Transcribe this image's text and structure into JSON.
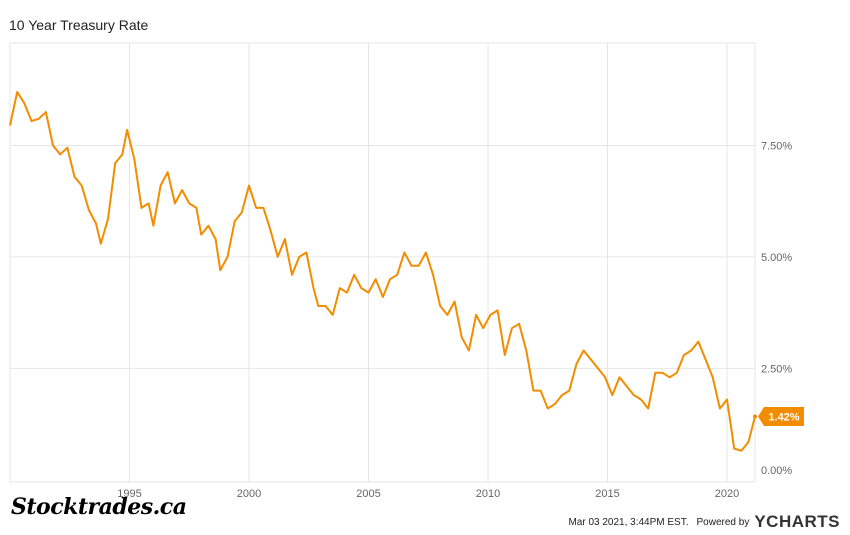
{
  "chart_data": {
    "type": "line",
    "title": "10 Year Treasury Rate",
    "series": [
      {
        "name": "",
        "color": "#f28c00",
        "x": [
          1990.0,
          1990.3,
          1990.6,
          1990.9,
          1991.2,
          1991.5,
          1991.8,
          1992.1,
          1992.4,
          1992.7,
          1993.0,
          1993.3,
          1993.6,
          1993.8,
          1994.1,
          1994.4,
          1994.7,
          1994.9,
          1995.2,
          1995.5,
          1995.8,
          1996.0,
          1996.3,
          1996.6,
          1996.9,
          1997.2,
          1997.5,
          1997.8,
          1998.0,
          1998.3,
          1998.6,
          1998.8,
          1999.1,
          1999.4,
          1999.7,
          2000.0,
          2000.3,
          2000.6,
          2000.9,
          2001.2,
          2001.5,
          2001.8,
          2002.1,
          2002.4,
          2002.7,
          2002.9,
          2003.2,
          2003.5,
          2003.8,
          2004.1,
          2004.4,
          2004.7,
          2005.0,
          2005.3,
          2005.6,
          2005.9,
          2006.2,
          2006.5,
          2006.8,
          2007.1,
          2007.4,
          2007.7,
          2008.0,
          2008.3,
          2008.6,
          2008.9,
          2009.2,
          2009.5,
          2009.8,
          2010.1,
          2010.4,
          2010.7,
          2011.0,
          2011.3,
          2011.6,
          2011.9,
          2012.2,
          2012.5,
          2012.8,
          2013.1,
          2013.4,
          2013.7,
          2014.0,
          2014.3,
          2014.6,
          2014.9,
          2015.2,
          2015.5,
          2015.8,
          2016.1,
          2016.4,
          2016.7,
          2017.0,
          2017.3,
          2017.6,
          2017.9,
          2018.2,
          2018.5,
          2018.8,
          2019.1,
          2019.4,
          2019.7,
          2020.0,
          2020.3,
          2020.6,
          2020.9,
          2021.17
        ],
        "y": [
          7.95,
          8.7,
          8.45,
          8.05,
          8.1,
          8.25,
          7.5,
          7.3,
          7.45,
          6.8,
          6.6,
          6.05,
          5.75,
          5.3,
          5.85,
          7.1,
          7.3,
          7.85,
          7.2,
          6.1,
          6.2,
          5.7,
          6.6,
          6.9,
          6.2,
          6.5,
          6.2,
          6.1,
          5.5,
          5.7,
          5.4,
          4.7,
          5.0,
          5.8,
          6.0,
          6.6,
          6.1,
          6.1,
          5.6,
          5.0,
          5.4,
          4.6,
          5.0,
          5.1,
          4.3,
          3.9,
          3.9,
          3.7,
          4.3,
          4.2,
          4.6,
          4.3,
          4.2,
          4.5,
          4.1,
          4.5,
          4.6,
          5.1,
          4.8,
          4.8,
          5.1,
          4.6,
          3.9,
          3.7,
          4.0,
          3.2,
          2.9,
          3.7,
          3.4,
          3.7,
          3.8,
          2.8,
          3.4,
          3.5,
          2.9,
          2.0,
          2.0,
          1.6,
          1.7,
          1.9,
          2.0,
          2.6,
          2.9,
          2.7,
          2.5,
          2.3,
          1.9,
          2.3,
          2.1,
          1.9,
          1.8,
          1.6,
          2.4,
          2.4,
          2.3,
          2.4,
          2.8,
          2.9,
          3.1,
          2.7,
          2.3,
          1.6,
          1.8,
          0.7,
          0.65,
          0.85,
          1.42
        ]
      }
    ],
    "xticks": [
      "1995",
      "2000",
      "2005",
      "2010",
      "2015",
      "2020"
    ],
    "yticks": [
      "0.00%",
      "2.50%",
      "5.00%",
      "7.50%"
    ],
    "xlim": [
      1990.0,
      2021.17
    ],
    "ylim": [
      -0.05,
      9.8
    ],
    "grid": true,
    "last_value_label": "1.42%"
  },
  "watermark": "Stocktrades.ca",
  "footer": {
    "timestamp": "Mar 03 2021, 3:44PM EST.",
    "powered_by": "Powered by",
    "brand": "YCHARTS"
  }
}
